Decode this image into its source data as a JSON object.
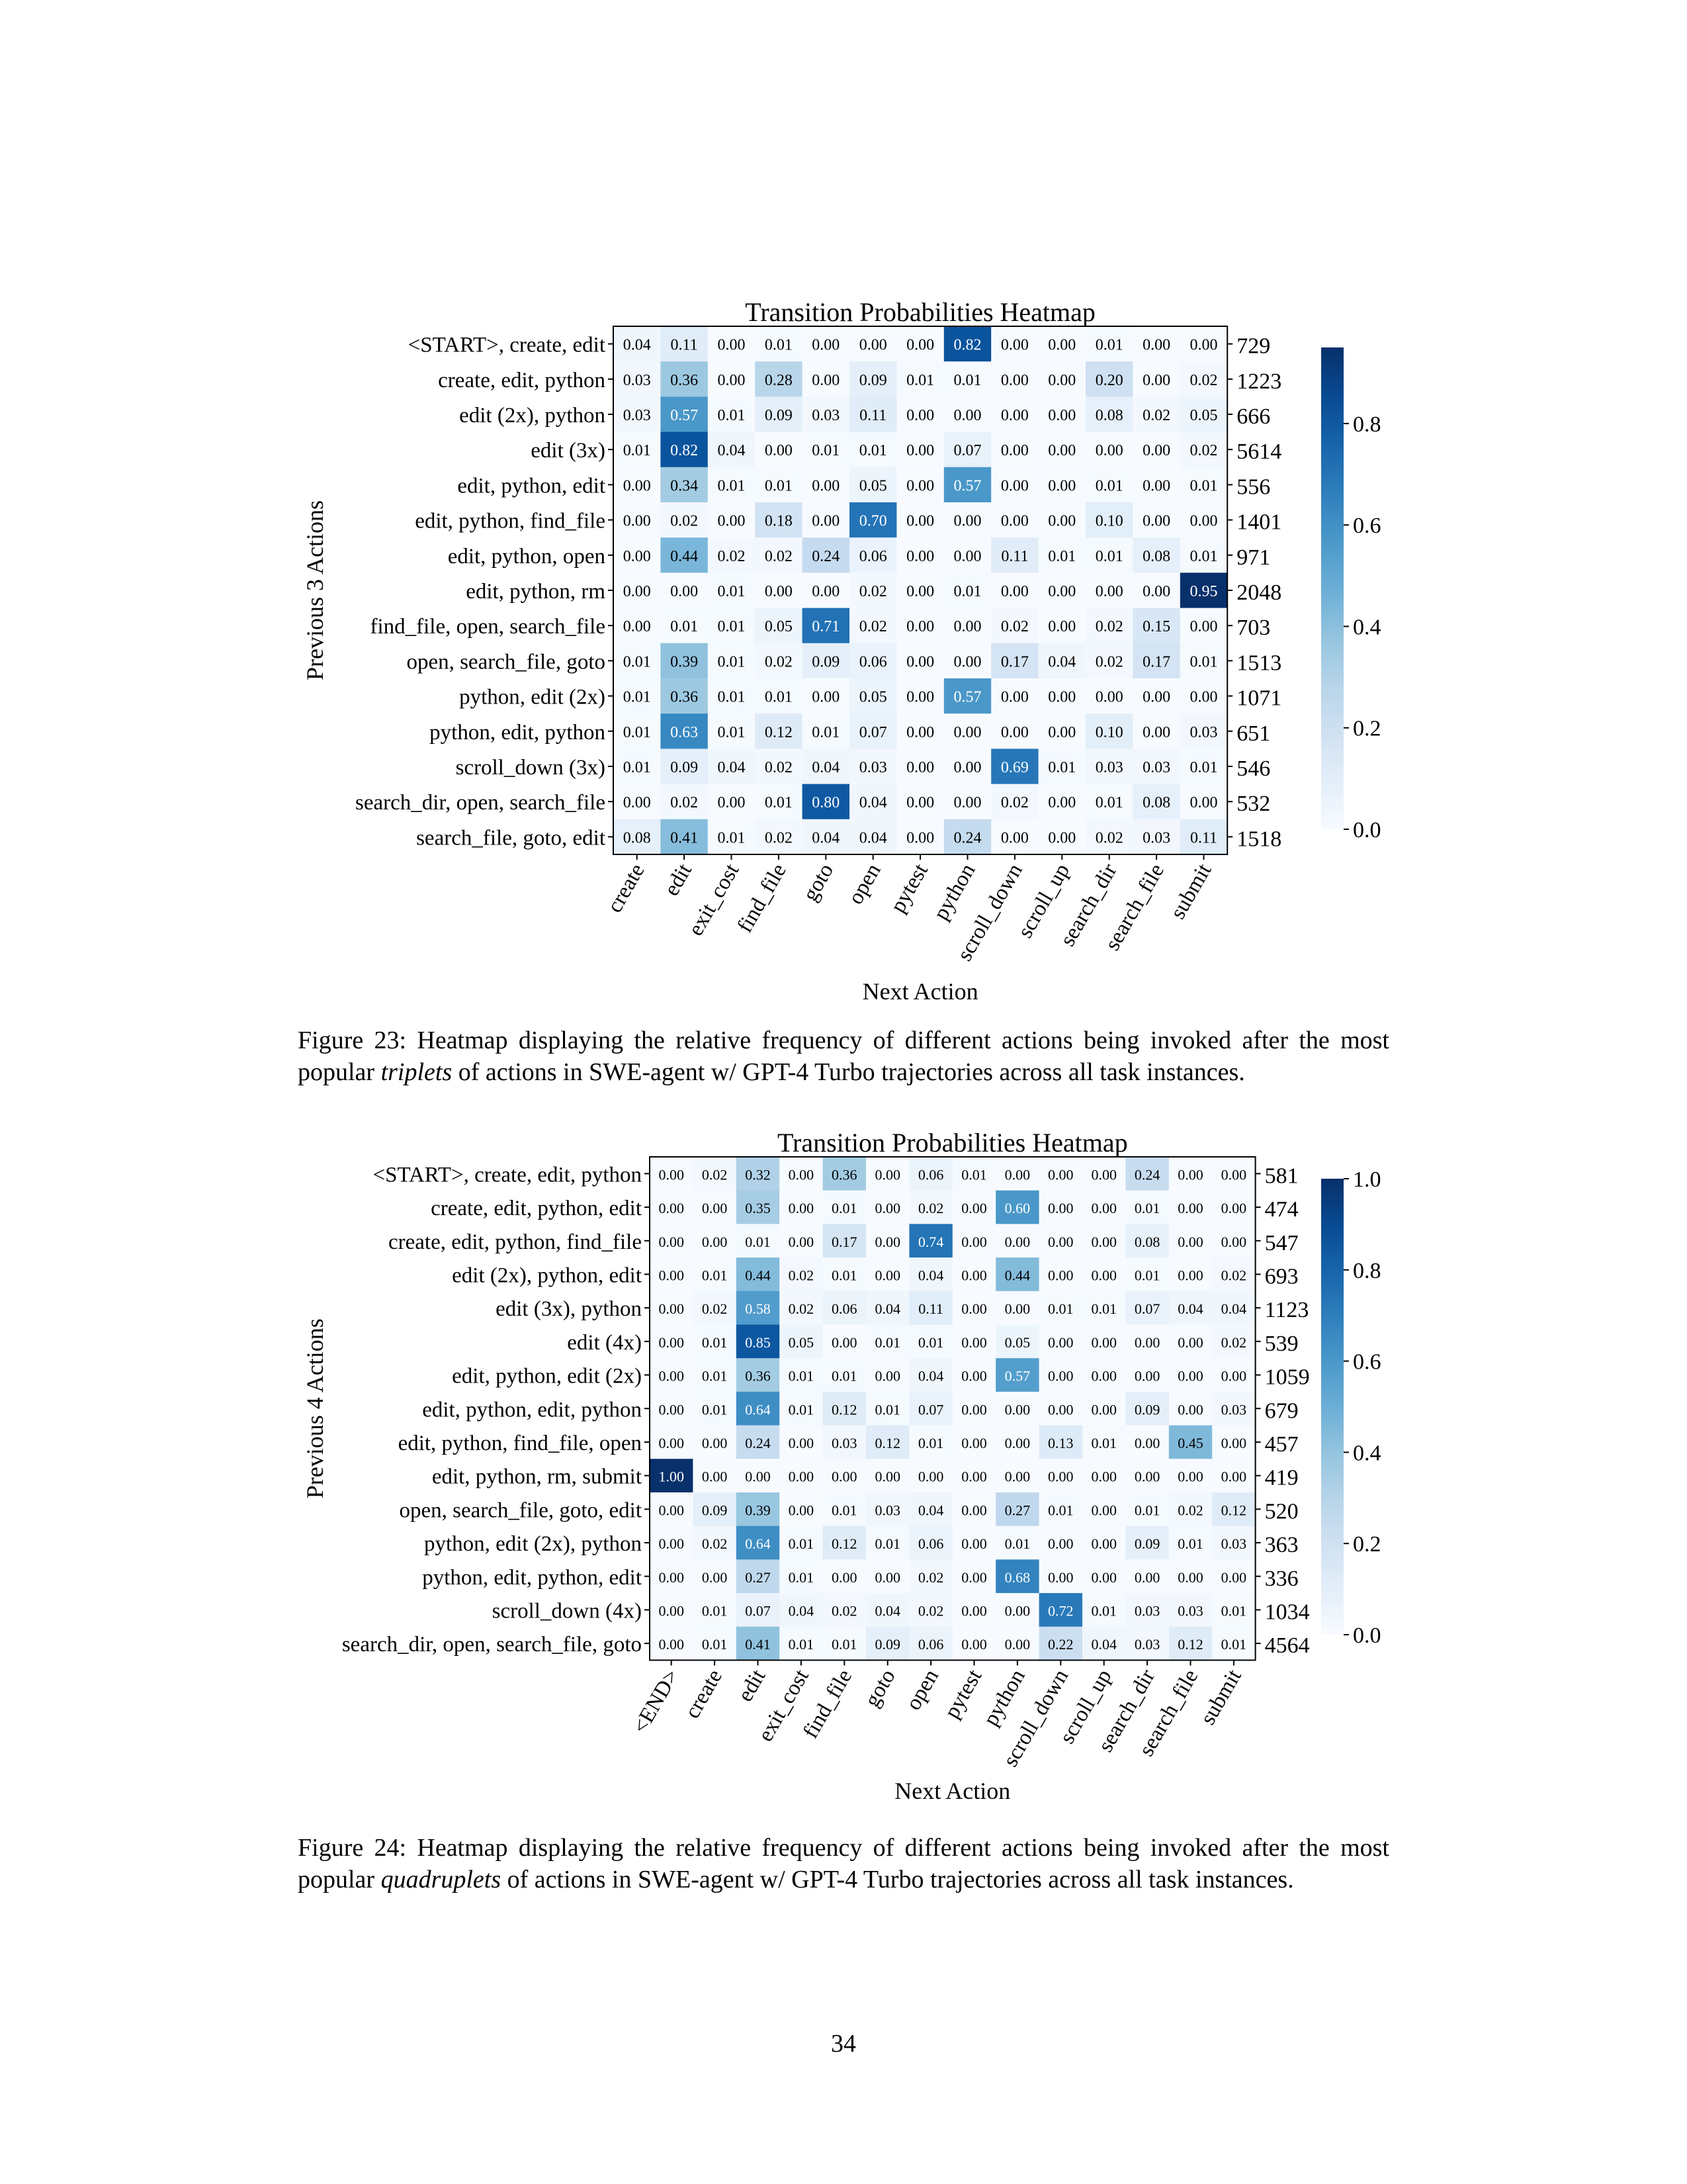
{
  "chart_data": [
    {
      "type": "heatmap",
      "title": "Transition Probabilities Heatmap",
      "xlabel": "Next Action",
      "ylabel": "Previous 3 Actions",
      "x": [
        "create",
        "edit",
        "exit_cost",
        "find_file",
        "goto",
        "open",
        "pytest",
        "python",
        "scroll_down",
        "scroll_up",
        "search_dir",
        "search_file",
        "submit"
      ],
      "y": [
        "<START>, create, edit",
        "create, edit, python",
        "edit (2x), python",
        "edit (3x)",
        "edit, python, edit",
        "edit, python, find_file",
        "edit, python, open",
        "edit, python, rm",
        "find_file, open, search_file",
        "open, search_file, goto",
        "python, edit (2x)",
        "python, edit, python",
        "scroll_down (3x)",
        "search_dir, open, search_file",
        "search_file, goto, edit"
      ],
      "values": [
        [
          0.04,
          0.11,
          0.0,
          0.01,
          0.0,
          0.0,
          0.0,
          0.82,
          0.0,
          0.0,
          0.01,
          0.0,
          0.0
        ],
        [
          0.03,
          0.36,
          0.0,
          0.28,
          0.0,
          0.09,
          0.01,
          0.01,
          0.0,
          0.0,
          0.2,
          0.0,
          0.02
        ],
        [
          0.03,
          0.57,
          0.01,
          0.09,
          0.03,
          0.11,
          0.0,
          0.0,
          0.0,
          0.0,
          0.08,
          0.02,
          0.05
        ],
        [
          0.01,
          0.82,
          0.04,
          0.0,
          0.01,
          0.01,
          0.0,
          0.07,
          0.0,
          0.0,
          0.0,
          0.0,
          0.02
        ],
        [
          0.0,
          0.34,
          0.01,
          0.01,
          0.0,
          0.05,
          0.0,
          0.57,
          0.0,
          0.0,
          0.01,
          0.0,
          0.01
        ],
        [
          0.0,
          0.02,
          0.0,
          0.18,
          0.0,
          0.7,
          0.0,
          0.0,
          0.0,
          0.0,
          0.1,
          0.0,
          0.0
        ],
        [
          0.0,
          0.44,
          0.02,
          0.02,
          0.24,
          0.06,
          0.0,
          0.0,
          0.11,
          0.01,
          0.01,
          0.08,
          0.01
        ],
        [
          0.0,
          0.0,
          0.01,
          0.0,
          0.0,
          0.02,
          0.0,
          0.01,
          0.0,
          0.0,
          0.0,
          0.0,
          0.95
        ],
        [
          0.0,
          0.01,
          0.01,
          0.05,
          0.71,
          0.02,
          0.0,
          0.0,
          0.02,
          0.0,
          0.02,
          0.15,
          0.0
        ],
        [
          0.01,
          0.39,
          0.01,
          0.02,
          0.09,
          0.06,
          0.0,
          0.0,
          0.17,
          0.04,
          0.02,
          0.17,
          0.01
        ],
        [
          0.01,
          0.36,
          0.01,
          0.01,
          0.0,
          0.05,
          0.0,
          0.57,
          0.0,
          0.0,
          0.0,
          0.0,
          0.0
        ],
        [
          0.01,
          0.63,
          0.01,
          0.12,
          0.01,
          0.07,
          0.0,
          0.0,
          0.0,
          0.0,
          0.1,
          0.0,
          0.03
        ],
        [
          0.01,
          0.09,
          0.04,
          0.02,
          0.04,
          0.03,
          0.0,
          0.0,
          0.69,
          0.01,
          0.03,
          0.03,
          0.01
        ],
        [
          0.0,
          0.02,
          0.0,
          0.01,
          0.8,
          0.04,
          0.0,
          0.0,
          0.02,
          0.0,
          0.01,
          0.08,
          0.0
        ],
        [
          0.08,
          0.41,
          0.01,
          0.02,
          0.04,
          0.04,
          0.0,
          0.24,
          0.0,
          0.0,
          0.02,
          0.03,
          0.11
        ]
      ],
      "counts": [
        "729",
        "1223",
        "666",
        "5614",
        "556",
        "1401",
        "971",
        "2048",
        "703",
        "1513",
        "1071",
        "651",
        "546",
        "532",
        "1518"
      ],
      "colorbar": {
        "min": 0.0,
        "max": 0.95,
        "ticks": [
          "0.0",
          "0.2",
          "0.4",
          "0.6",
          "0.8"
        ]
      }
    },
    {
      "type": "heatmap",
      "title": "Transition Probabilities Heatmap",
      "xlabel": "Next Action",
      "ylabel": "Previous 4 Actions",
      "x": [
        "<END>",
        "create",
        "edit",
        "exit_cost",
        "find_file",
        "goto",
        "open",
        "pytest",
        "python",
        "scroll_down",
        "scroll_up",
        "search_dir",
        "search_file",
        "submit"
      ],
      "y": [
        "<START>, create, edit, python",
        "create, edit, python, edit",
        "create, edit, python, find_file",
        "edit (2x), python, edit",
        "edit (3x), python",
        "edit (4x)",
        "edit, python, edit (2x)",
        "edit, python, edit, python",
        "edit, python, find_file, open",
        "edit, python, rm, submit",
        "open, search_file, goto, edit",
        "python, edit (2x), python",
        "python, edit, python, edit",
        "scroll_down (4x)",
        "search_dir, open, search_file, goto"
      ],
      "values": [
        [
          0.0,
          0.02,
          0.32,
          0.0,
          0.36,
          0.0,
          0.06,
          0.01,
          0.0,
          0.0,
          0.0,
          0.24,
          0.0,
          0.0
        ],
        [
          0.0,
          0.0,
          0.35,
          0.0,
          0.01,
          0.0,
          0.02,
          0.0,
          0.6,
          0.0,
          0.0,
          0.01,
          0.0,
          0.0
        ],
        [
          0.0,
          0.0,
          0.01,
          0.0,
          0.17,
          0.0,
          0.74,
          0.0,
          0.0,
          0.0,
          0.0,
          0.08,
          0.0,
          0.0
        ],
        [
          0.0,
          0.01,
          0.44,
          0.02,
          0.01,
          0.0,
          0.04,
          0.0,
          0.44,
          0.0,
          0.0,
          0.01,
          0.0,
          0.02
        ],
        [
          0.0,
          0.02,
          0.58,
          0.02,
          0.06,
          0.04,
          0.11,
          0.0,
          0.0,
          0.01,
          0.01,
          0.07,
          0.04,
          0.04
        ],
        [
          0.0,
          0.01,
          0.85,
          0.05,
          0.0,
          0.01,
          0.01,
          0.0,
          0.05,
          0.0,
          0.0,
          0.0,
          0.0,
          0.02
        ],
        [
          0.0,
          0.01,
          0.36,
          0.01,
          0.01,
          0.0,
          0.04,
          0.0,
          0.57,
          0.0,
          0.0,
          0.0,
          0.0,
          0.0
        ],
        [
          0.0,
          0.01,
          0.64,
          0.01,
          0.12,
          0.01,
          0.07,
          0.0,
          0.0,
          0.0,
          0.0,
          0.09,
          0.0,
          0.03
        ],
        [
          0.0,
          0.0,
          0.24,
          0.0,
          0.03,
          0.12,
          0.01,
          0.0,
          0.0,
          0.13,
          0.01,
          0.0,
          0.45,
          0.0
        ],
        [
          1.0,
          0.0,
          0.0,
          0.0,
          0.0,
          0.0,
          0.0,
          0.0,
          0.0,
          0.0,
          0.0,
          0.0,
          0.0,
          0.0
        ],
        [
          0.0,
          0.09,
          0.39,
          0.0,
          0.01,
          0.03,
          0.04,
          0.0,
          0.27,
          0.01,
          0.0,
          0.01,
          0.02,
          0.12
        ],
        [
          0.0,
          0.02,
          0.64,
          0.01,
          0.12,
          0.01,
          0.06,
          0.0,
          0.01,
          0.0,
          0.0,
          0.09,
          0.01,
          0.03
        ],
        [
          0.0,
          0.0,
          0.27,
          0.01,
          0.0,
          0.0,
          0.02,
          0.0,
          0.68,
          0.0,
          0.0,
          0.0,
          0.0,
          0.0
        ],
        [
          0.0,
          0.01,
          0.07,
          0.04,
          0.02,
          0.04,
          0.02,
          0.0,
          0.0,
          0.72,
          0.01,
          0.03,
          0.03,
          0.01
        ],
        [
          0.0,
          0.01,
          0.41,
          0.01,
          0.01,
          0.09,
          0.06,
          0.0,
          0.0,
          0.22,
          0.04,
          0.03,
          0.12,
          0.01
        ]
      ],
      "counts": [
        "581",
        "474",
        "547",
        "693",
        "1123",
        "539",
        "1059",
        "679",
        "457",
        "419",
        "520",
        "363",
        "336",
        "1034",
        "4564"
      ],
      "colorbar": {
        "min": 0.0,
        "max": 1.0,
        "ticks": [
          "0.0",
          "0.2",
          "0.4",
          "0.6",
          "0.8",
          "1.0"
        ]
      }
    }
  ],
  "captions": {
    "fig23": {
      "before": "Figure 23: Heatmap displaying the relative frequency of different actions being invoked after the most popular ",
      "em": "triplets",
      "after": " of actions in SWE-agent w/ GPT-4 Turbo trajectories across all task instances."
    },
    "fig24": {
      "before": "Figure 24: Heatmap displaying the relative frequency of different actions being invoked after the most popular ",
      "em": "quadruplets",
      "after": " of actions in SWE-agent w/ GPT-4 Turbo trajectories across all task instances."
    }
  },
  "page_number": "34"
}
